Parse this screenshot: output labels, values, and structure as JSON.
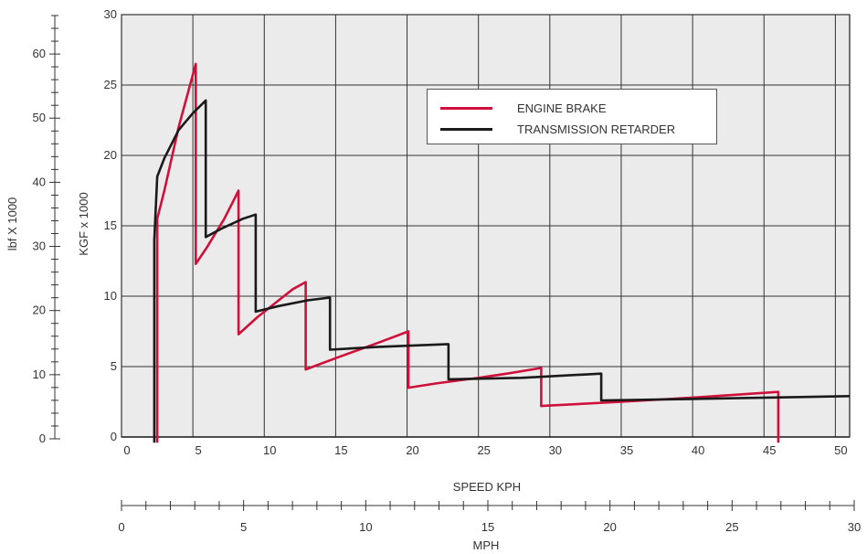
{
  "chart_data": {
    "type": "line",
    "xlabel": "SPEED KPH",
    "ylabel": "KGF x 1000",
    "ylabel_secondary": "lbf X 1000",
    "x2label": "MPH",
    "xlim": [
      0,
      51
    ],
    "ylim": [
      0,
      30
    ],
    "y2lim": [
      0,
      66
    ],
    "x2lim": [
      0,
      30
    ],
    "grid": true,
    "legend_position": "top-right",
    "x_ticks": [
      0,
      5,
      10,
      15,
      20,
      25,
      30,
      35,
      40,
      45,
      50
    ],
    "y_ticks": [
      0,
      5,
      10,
      15,
      20,
      25,
      30
    ],
    "y2_ticks": [
      0,
      10,
      20,
      30,
      40,
      50,
      60
    ],
    "x2_ticks": [
      0,
      5,
      10,
      15,
      20,
      25,
      30
    ],
    "series": [
      {
        "name": "ENGINE BRAKE",
        "color": "#d0103a",
        "points": [
          [
            2.5,
            -0.4
          ],
          [
            2.5,
            15.5
          ],
          [
            3.0,
            17.5
          ],
          [
            4.0,
            22
          ],
          [
            5.2,
            26.5
          ],
          [
            5.2,
            12.3
          ],
          [
            6.0,
            13.5
          ],
          [
            7.2,
            15.5
          ],
          [
            7.8,
            16.7
          ],
          [
            8.2,
            17.5
          ],
          [
            8.2,
            7.3
          ],
          [
            9.5,
            8.5
          ],
          [
            11.0,
            9.7
          ],
          [
            12.0,
            10.5
          ],
          [
            12.9,
            11.0
          ],
          [
            12.9,
            4.8
          ],
          [
            15.0,
            5.6
          ],
          [
            18.0,
            6.7
          ],
          [
            20.1,
            7.5
          ],
          [
            20.1,
            3.5
          ],
          [
            22.0,
            3.8
          ],
          [
            25.0,
            4.2
          ],
          [
            27.0,
            4.5
          ],
          [
            29.4,
            4.9
          ],
          [
            29.4,
            2.2
          ],
          [
            35.0,
            2.5
          ],
          [
            40.0,
            2.8
          ],
          [
            43.0,
            3.0
          ],
          [
            46.0,
            3.2
          ],
          [
            46.0,
            -0.4
          ]
        ]
      },
      {
        "name": "TRANSMISSION RETARDER",
        "color": "#1a1a1a",
        "points": [
          [
            2.3,
            -0.4
          ],
          [
            2.3,
            14.0
          ],
          [
            2.5,
            18.5
          ],
          [
            3.0,
            19.8
          ],
          [
            4.0,
            21.8
          ],
          [
            5.0,
            23.0
          ],
          [
            5.9,
            23.9
          ],
          [
            5.9,
            14.2
          ],
          [
            7.0,
            14.8
          ],
          [
            8.5,
            15.5
          ],
          [
            9.4,
            15.8
          ],
          [
            9.4,
            8.9
          ],
          [
            11.0,
            9.3
          ],
          [
            13.0,
            9.7
          ],
          [
            14.6,
            9.9
          ],
          [
            14.6,
            6.2
          ],
          [
            18.0,
            6.4
          ],
          [
            22.9,
            6.6
          ],
          [
            22.9,
            4.1
          ],
          [
            28.0,
            4.2
          ],
          [
            33.6,
            4.5
          ],
          [
            33.6,
            2.6
          ],
          [
            40.0,
            2.7
          ],
          [
            51.0,
            2.9
          ]
        ]
      }
    ]
  }
}
